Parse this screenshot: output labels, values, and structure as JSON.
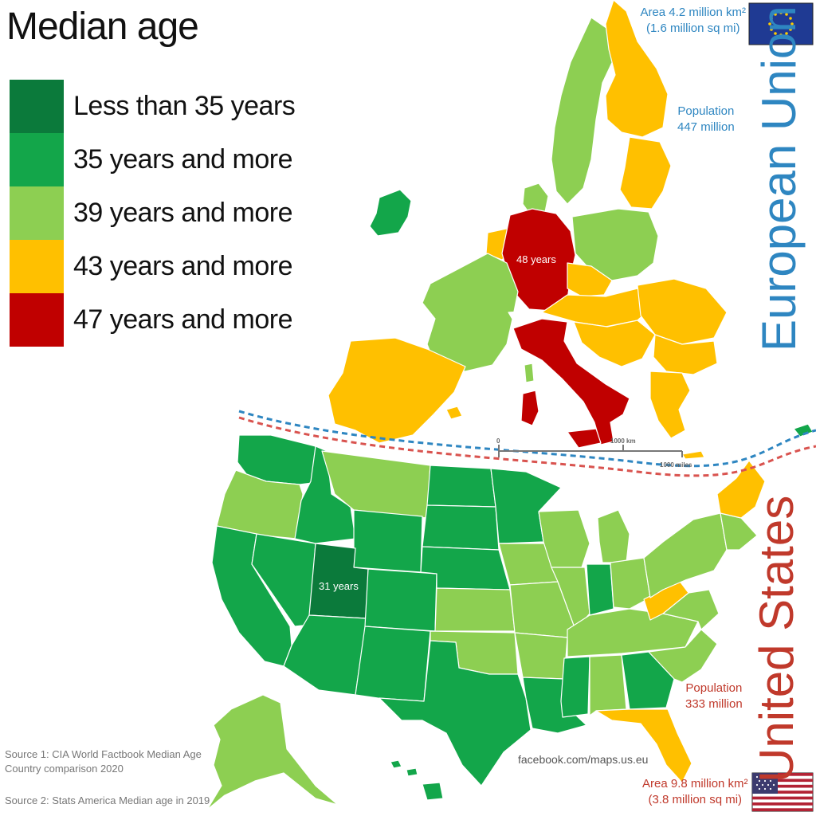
{
  "title": "Median age",
  "legend": [
    {
      "label": "Less than 35 years",
      "color": "#0b7a3b"
    },
    {
      "label": "35 years and more",
      "color": "#13a64a"
    },
    {
      "label": "39 years and more",
      "color": "#8dcf52"
    },
    {
      "label": "43 years and more",
      "color": "#ffc000"
    },
    {
      "label": "47 years and more",
      "color": "#c00000"
    }
  ],
  "eu": {
    "name": "European Union",
    "area_line1": "Area 4.2 million km²",
    "area_line2": "(1.6 million sq mi)",
    "population_line1": "Population",
    "population_line2": "447 million",
    "highlight_label": "48 years",
    "flag_icon": "eu-flag-icon"
  },
  "us": {
    "name": "United States",
    "area_line1": "Area 9.8 million km²",
    "area_line2": "(3.8 million sq mi)",
    "population_line1": "Population",
    "population_line2": "333 million",
    "highlight_label": "31 years",
    "flag_icon": "us-flag-icon"
  },
  "scale": {
    "zero": "0",
    "km": "1000 km",
    "miles": "1000 miles"
  },
  "sources": {
    "source1_line1": "Source 1: CIA World Factbook Median Age",
    "source1_line2": "Country comparison 2020",
    "source2": "Source 2: Stats America Median age in 2019"
  },
  "credit": "facebook.com/maps.us.eu",
  "colors": {
    "divider_red": "#d9534f",
    "divider_blue": "#2e86c1",
    "eu_text": "#2e86c1",
    "us_text": "#c0392b"
  }
}
